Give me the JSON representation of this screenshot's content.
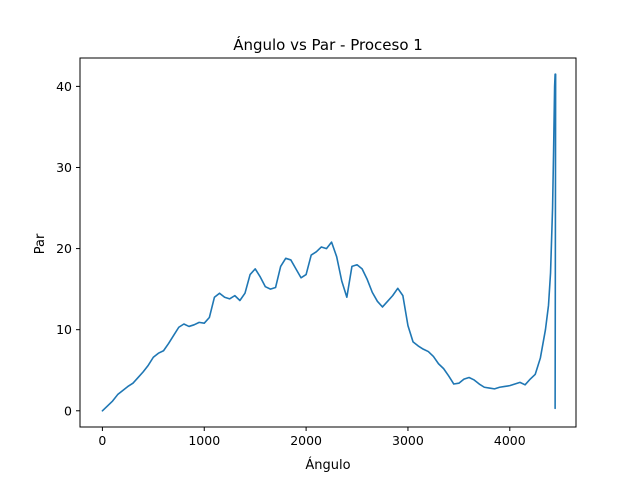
{
  "chart_data": {
    "type": "line",
    "title": "Ángulo vs Par - Proceso 1",
    "xlabel": "Ángulo",
    "ylabel": "Par",
    "xlim": [
      -220,
      4650
    ],
    "ylim": [
      -2,
      43.5
    ],
    "xticks": [
      0,
      1000,
      2000,
      3000,
      4000
    ],
    "yticks": [
      0,
      10,
      20,
      30,
      40
    ],
    "grid": false,
    "series": [
      {
        "color": "#1f77b4",
        "x": [
          0,
          50,
          100,
          150,
          200,
          250,
          300,
          350,
          400,
          450,
          500,
          550,
          600,
          650,
          700,
          750,
          800,
          850,
          900,
          950,
          1000,
          1050,
          1100,
          1150,
          1200,
          1250,
          1300,
          1350,
          1400,
          1450,
          1500,
          1550,
          1600,
          1650,
          1700,
          1750,
          1800,
          1850,
          1900,
          1950,
          2000,
          2050,
          2100,
          2150,
          2200,
          2250,
          2300,
          2350,
          2400,
          2450,
          2500,
          2550,
          2600,
          2650,
          2700,
          2750,
          2800,
          2850,
          2900,
          2950,
          3000,
          3050,
          3100,
          3150,
          3200,
          3250,
          3300,
          3350,
          3400,
          3450,
          3500,
          3550,
          3600,
          3650,
          3700,
          3750,
          3800,
          3850,
          3900,
          3950,
          4000,
          4050,
          4100,
          4150,
          4200,
          4250,
          4300,
          4350,
          4380,
          4400,
          4420,
          4430,
          4440,
          4445,
          4450,
          4445
        ],
        "y": [
          0.0,
          0.6,
          1.2,
          2.0,
          2.5,
          3.0,
          3.4,
          4.1,
          4.8,
          5.6,
          6.6,
          7.1,
          7.4,
          8.3,
          9.3,
          10.3,
          10.7,
          10.4,
          10.6,
          10.9,
          10.8,
          11.5,
          14.0,
          14.5,
          14.0,
          13.8,
          14.2,
          13.6,
          14.5,
          16.8,
          17.5,
          16.5,
          15.3,
          15.0,
          15.2,
          17.8,
          18.8,
          18.6,
          17.5,
          16.4,
          16.8,
          19.2,
          19.6,
          20.2,
          20.0,
          20.8,
          19.0,
          16.0,
          14.0,
          17.8,
          18.0,
          17.5,
          16.2,
          14.6,
          13.5,
          12.8,
          13.5,
          14.2,
          15.1,
          14.2,
          10.5,
          8.5,
          8.0,
          7.6,
          7.3,
          6.7,
          5.8,
          5.2,
          4.3,
          3.3,
          3.4,
          3.9,
          4.1,
          3.8,
          3.3,
          2.9,
          2.8,
          2.7,
          2.9,
          3.0,
          3.1,
          3.3,
          3.5,
          3.2,
          3.9,
          4.5,
          6.5,
          10.0,
          13.0,
          17.0,
          25.0,
          32.0,
          40.0,
          41.5,
          41.5,
          0.3
        ]
      }
    ]
  }
}
